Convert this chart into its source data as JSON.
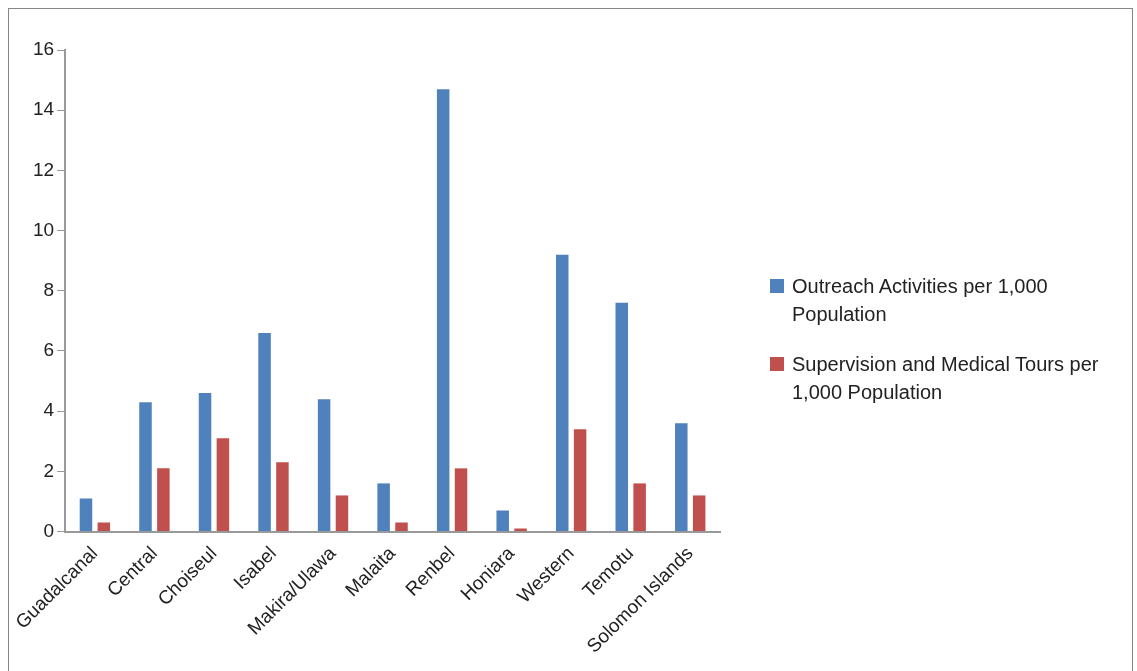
{
  "chart_data": {
    "type": "bar",
    "categories": [
      "Guadalcanal",
      "Central",
      "Choiseul",
      "Isabel",
      "Makira/Ulawa",
      "Malaita",
      "Renbel",
      "Honiara",
      "Western",
      "Temotu",
      "Solomon Islands"
    ],
    "series": [
      {
        "name": "Outreach Activities per 1,000 Population",
        "color": "#4f81bd",
        "values": [
          1.1,
          4.3,
          4.6,
          6.6,
          4.4,
          1.6,
          14.7,
          0.7,
          9.2,
          7.6,
          3.6
        ]
      },
      {
        "name": "Supervision and Medical Tours per 1,000 Population",
        "color": "#c0504d",
        "values": [
          0.3,
          2.1,
          3.1,
          2.3,
          1.2,
          0.3,
          2.1,
          0.1,
          3.4,
          1.6,
          1.2
        ]
      }
    ],
    "ylim": [
      0,
      16
    ],
    "yticks": [
      0,
      2,
      4,
      6,
      8,
      10,
      12,
      14,
      16
    ],
    "grid": false,
    "legend": "right"
  }
}
